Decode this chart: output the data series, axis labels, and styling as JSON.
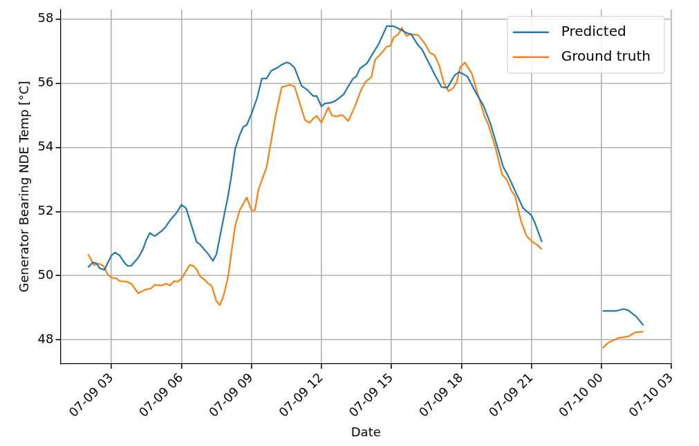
{
  "chart_data": {
    "type": "line",
    "xlabel": "Date",
    "ylabel": "Generator Bearing NDE Temp [°C]",
    "xlim": [
      "--07-09T00:49",
      "--07-10T03:00"
    ],
    "ylim": [
      47.25,
      58.3
    ],
    "xticks": [
      {
        "value": "--07-09T03:00",
        "label": "07-09 03"
      },
      {
        "value": "--07-09T06:00",
        "label": "07-09 06"
      },
      {
        "value": "--07-09T09:00",
        "label": "07-09 09"
      },
      {
        "value": "--07-09T12:00",
        "label": "07-09 12"
      },
      {
        "value": "--07-09T15:00",
        "label": "07-09 15"
      },
      {
        "value": "--07-09T18:00",
        "label": "07-09 18"
      },
      {
        "value": "--07-09T21:00",
        "label": "07-09 21"
      },
      {
        "value": "--07-10T00:00",
        "label": "07-10 00"
      },
      {
        "value": "--07-10T03:00",
        "label": "07-10 03"
      }
    ],
    "yticks": [
      48,
      50,
      52,
      54,
      56,
      58
    ],
    "grid": true,
    "legend": "top right",
    "line_style": "solid",
    "marker": "none",
    "series": [
      {
        "name": "Predicted",
        "color": "#1f77b4",
        "x": [
          "--07-09T02:00",
          "--07-09T02:12",
          "--07-09T02:21",
          "--07-09T02:30",
          "--07-09T02:42",
          "--07-09T03:00",
          "--07-09T03:09",
          "--07-09T03:21",
          "--07-09T03:33",
          "--07-09T03:42",
          "--07-09T03:51",
          "--07-09T04:09",
          "--07-09T04:21",
          "--07-09T04:30",
          "--07-09T04:39",
          "--07-09T04:51",
          "--07-09T05:09",
          "--07-09T05:18",
          "--07-09T05:30",
          "--07-09T05:48",
          "--07-09T06:00",
          "--07-09T06:12",
          "--07-09T06:39",
          "--07-09T06:48",
          "--07-09T07:09",
          "--07-09T07:21",
          "--07-09T07:30",
          "--07-09T07:51",
          "--07-09T08:00",
          "--07-09T08:09",
          "--07-09T08:18",
          "--07-09T08:30",
          "--07-09T08:39",
          "--07-09T08:48",
          "--07-09T09:00",
          "--07-09T09:15",
          "--07-09T09:27",
          "--07-09T09:39",
          "--07-09T09:51",
          "--07-09T10:06",
          "--07-09T10:18",
          "--07-09T10:30",
          "--07-09T10:39",
          "--07-09T10:51",
          "--07-09T11:09",
          "--07-09T11:24",
          "--07-09T11:39",
          "--07-09T11:48",
          "--07-09T12:00",
          "--07-09T12:09",
          "--07-09T12:24",
          "--07-09T12:36",
          "--07-09T12:57",
          "--07-09T13:09",
          "--07-09T13:21",
          "--07-09T13:30",
          "--07-09T13:39",
          "--07-09T13:57",
          "--07-09T14:09",
          "--07-09T14:27",
          "--07-09T14:48",
          "--07-09T15:06",
          "--07-09T15:24",
          "--07-09T15:39",
          "--07-09T15:51",
          "--07-09T16:09",
          "--07-09T16:18",
          "--07-09T16:36",
          "--07-09T16:51",
          "--07-09T17:09",
          "--07-09T17:24",
          "--07-09T17:42",
          "--07-09T17:54",
          "--07-09T18:15",
          "--07-09T18:39",
          "--07-09T18:57",
          "--07-09T19:15",
          "--07-09T19:48",
          "--07-09T20:00",
          "--07-09T20:39",
          "--07-09T21:00",
          "--07-09T21:09",
          "--07-09T21:27",
          "--07-09T22:48",
          "--07-10T00:03",
          "--07-10T00:39",
          "--07-10T00:57",
          "--07-10T01:09",
          "--07-10T01:30",
          "--07-10T01:48"
        ],
        "values": [
          50.26,
          50.41,
          50.39,
          50.23,
          50.18,
          50.63,
          50.72,
          50.63,
          50.41,
          50.3,
          50.31,
          50.56,
          50.82,
          51.12,
          51.33,
          51.23,
          51.39,
          51.5,
          51.71,
          51.97,
          52.21,
          52.1,
          51.05,
          50.97,
          50.67,
          50.46,
          50.66,
          51.95,
          52.48,
          53.15,
          53.94,
          54.39,
          54.64,
          54.7,
          55.04,
          55.56,
          56.15,
          56.15,
          56.39,
          56.48,
          56.58,
          56.65,
          56.62,
          56.48,
          55.92,
          55.79,
          55.6,
          55.6,
          55.28,
          55.37,
          55.39,
          55.45,
          55.65,
          55.9,
          56.14,
          56.22,
          56.46,
          56.62,
          56.86,
          57.22,
          57.78,
          57.78,
          57.67,
          57.57,
          57.53,
          57.18,
          57.07,
          56.65,
          56.28,
          55.88,
          55.86,
          56.24,
          56.35,
          56.22,
          55.67,
          55.3,
          54.73,
          53.38,
          53.12,
          52.1,
          51.88,
          51.65,
          51.05,
          null,
          48.9,
          48.9,
          48.96,
          48.92,
          48.72,
          48.45
        ]
      },
      {
        "name": "Ground truth",
        "color": "#ff7f0e",
        "x": [
          "--07-09T02:00",
          "--07-09T02:15",
          "--07-09T02:27",
          "--07-09T02:39",
          "--07-09T02:51",
          "--07-09T03:03",
          "--07-09T03:12",
          "--07-09T03:21",
          "--07-09T03:39",
          "--07-09T03:51",
          "--07-09T04:09",
          "--07-09T04:27",
          "--07-09T04:42",
          "--07-09T04:51",
          "--07-09T05:09",
          "--07-09T05:21",
          "--07-09T05:30",
          "--07-09T05:42",
          "--07-09T05:51",
          "--07-09T06:00",
          "--07-09T06:21",
          "--07-09T06:30",
          "--07-09T06:39",
          "--07-09T06:48",
          "--07-09T06:57",
          "--07-09T07:09",
          "--07-09T07:18",
          "--07-09T07:30",
          "--07-09T07:39",
          "--07-09T07:48",
          "--07-09T08:00",
          "--07-09T08:18",
          "--07-09T08:30",
          "--07-09T08:48",
          "--07-09T09:00",
          "--07-09T09:09",
          "--07-09T09:18",
          "--07-09T09:30",
          "--07-09T09:39",
          "--07-09T09:51",
          "--07-09T10:03",
          "--07-09T10:18",
          "--07-09T10:39",
          "--07-09T10:51",
          "--07-09T11:18",
          "--07-09T11:30",
          "--07-09T11:39",
          "--07-09T11:48",
          "--07-09T12:00",
          "--07-09T12:18",
          "--07-09T12:27",
          "--07-09T12:39",
          "--07-09T12:51",
          "--07-09T12:57",
          "--07-09T13:09",
          "--07-09T13:27",
          "--07-09T13:42",
          "--07-09T13:54",
          "--07-09T14:09",
          "--07-09T14:18",
          "--07-09T14:30",
          "--07-09T14:48",
          "--07-09T14:57",
          "--07-09T15:06",
          "--07-09T15:18",
          "--07-09T15:27",
          "--07-09T15:39",
          "--07-09T15:51",
          "--07-09T16:09",
          "--07-09T16:27",
          "--07-09T16:39",
          "--07-09T16:51",
          "--07-09T17:03",
          "--07-09T17:15",
          "--07-09T17:27",
          "--07-09T17:39",
          "--07-09T17:48",
          "--07-09T17:57",
          "--07-09T18:09",
          "--07-09T18:27",
          "--07-09T18:39",
          "--07-09T19:00",
          "--07-09T19:09",
          "--07-09T19:27",
          "--07-09T19:45",
          "--07-09T19:57",
          "--07-09T20:09",
          "--07-09T20:18",
          "--07-09T20:33",
          "--07-09T20:48",
          "--07-09T21:03",
          "--07-09T21:15",
          "--07-09T21:27",
          "--07-09T22:48",
          "--07-10T00:03",
          "--07-10T00:18",
          "--07-10T00:45",
          "--07-10T01:09",
          "--07-10T01:27",
          "--07-10T01:48"
        ],
        "values": [
          50.67,
          50.33,
          50.37,
          50.31,
          50.03,
          49.92,
          49.92,
          49.83,
          49.81,
          49.75,
          49.45,
          49.56,
          49.6,
          49.71,
          49.69,
          49.75,
          49.69,
          49.83,
          49.81,
          49.9,
          50.33,
          50.31,
          50.2,
          49.98,
          49.9,
          49.75,
          49.68,
          49.2,
          49.08,
          49.35,
          49.96,
          51.54,
          52.04,
          52.44,
          52.04,
          52.04,
          52.67,
          53.08,
          53.38,
          54.21,
          55.04,
          55.88,
          55.95,
          55.9,
          54.85,
          54.77,
          54.9,
          54.98,
          54.77,
          55.25,
          55.0,
          54.96,
          55.01,
          54.98,
          54.82,
          55.3,
          55.79,
          56.05,
          56.2,
          56.73,
          56.88,
          57.14,
          57.16,
          57.43,
          57.53,
          57.73,
          57.48,
          57.53,
          57.5,
          57.22,
          56.95,
          56.88,
          56.56,
          56.01,
          55.75,
          55.85,
          56.03,
          56.5,
          56.65,
          56.3,
          55.79,
          54.96,
          54.72,
          54.02,
          53.15,
          52.99,
          52.64,
          52.49,
          51.72,
          51.23,
          51.05,
          50.96,
          50.82,
          null,
          47.74,
          47.91,
          48.06,
          48.1,
          48.23,
          48.25
        ]
      }
    ]
  }
}
